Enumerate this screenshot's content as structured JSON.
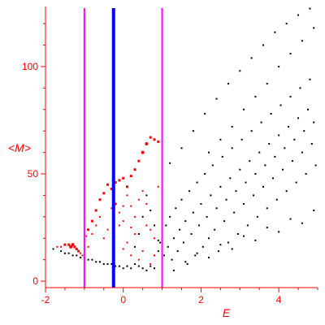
{
  "colors": {
    "axis": "#ff0000",
    "black_points": "#000000",
    "red_points": "#ff0000",
    "magenta_line": "#ff00ff",
    "blue_line": "#0000ff",
    "background": "#ffffff"
  },
  "chart_data": {
    "type": "scatter",
    "title": "",
    "xlabel": "E",
    "ylabel": "<M>",
    "xlim": [
      -2,
      5
    ],
    "ylim": [
      -3,
      128
    ],
    "x_ticks": [
      -2,
      0,
      2,
      4
    ],
    "y_ticks": [
      0,
      50,
      100
    ],
    "grid": false,
    "vertical_lines": [
      {
        "x": -1.0,
        "color": "#ff00ff",
        "width": "thin"
      },
      {
        "x": -0.25,
        "color": "#0000ff",
        "width": "thick"
      },
      {
        "x": 1.0,
        "color": "#ff00ff",
        "width": "thin"
      }
    ],
    "series": [
      {
        "color": "#000000",
        "marker": "small-dot",
        "points": [
          [
            -1.8,
            15
          ],
          [
            -1.6,
            14
          ],
          [
            -1.5,
            13
          ],
          [
            -1.4,
            13
          ],
          [
            -1.3,
            12
          ],
          [
            -1.2,
            12
          ],
          [
            -1.1,
            11
          ],
          [
            -1.0,
            11
          ],
          [
            -0.9,
            10
          ],
          [
            -0.8,
            10
          ],
          [
            -0.7,
            9
          ],
          [
            -0.6,
            9
          ],
          [
            -0.5,
            8
          ],
          [
            -0.4,
            8
          ],
          [
            -0.3,
            8
          ],
          [
            -0.2,
            7
          ],
          [
            -0.1,
            7
          ],
          [
            0.0,
            6
          ],
          [
            0.1,
            7
          ],
          [
            0.2,
            6
          ],
          [
            0.3,
            8
          ],
          [
            0.4,
            7
          ],
          [
            0.5,
            6
          ],
          [
            0.6,
            5
          ],
          [
            0.7,
            7
          ],
          [
            0.8,
            6
          ],
          [
            0.9,
            14
          ],
          [
            0.95,
            18
          ],
          [
            1.0,
            22
          ],
          [
            1.05,
            12
          ],
          [
            1.1,
            26
          ],
          [
            1.15,
            16
          ],
          [
            1.2,
            30
          ],
          [
            1.25,
            10
          ],
          [
            1.3,
            20
          ],
          [
            1.35,
            34
          ],
          [
            1.4,
            14
          ],
          [
            1.45,
            24
          ],
          [
            1.5,
            38
          ],
          [
            1.55,
            18
          ],
          [
            1.6,
            28
          ],
          [
            1.65,
            8
          ],
          [
            1.7,
            42
          ],
          [
            1.75,
            22
          ],
          [
            1.8,
            32
          ],
          [
            1.85,
            12
          ],
          [
            1.9,
            46
          ],
          [
            1.95,
            26
          ],
          [
            2.0,
            36
          ],
          [
            2.05,
            16
          ],
          [
            2.1,
            50
          ],
          [
            2.15,
            30
          ],
          [
            2.2,
            20
          ],
          [
            2.25,
            40
          ],
          [
            2.3,
            54
          ],
          [
            2.35,
            24
          ],
          [
            2.4,
            34
          ],
          [
            2.45,
            14
          ],
          [
            2.5,
            44
          ],
          [
            2.55,
            58
          ],
          [
            2.6,
            28
          ],
          [
            2.65,
            38
          ],
          [
            2.7,
            18
          ],
          [
            2.75,
            48
          ],
          [
            2.8,
            62
          ],
          [
            2.85,
            32
          ],
          [
            2.9,
            42
          ],
          [
            2.95,
            22
          ],
          [
            3.0,
            52
          ],
          [
            3.05,
            66
          ],
          [
            3.1,
            36
          ],
          [
            3.15,
            46
          ],
          [
            3.2,
            26
          ],
          [
            3.25,
            56
          ],
          [
            3.3,
            70
          ],
          [
            3.35,
            40
          ],
          [
            3.4,
            50
          ],
          [
            3.45,
            30
          ],
          [
            3.5,
            60
          ],
          [
            3.55,
            74
          ],
          [
            3.6,
            44
          ],
          [
            3.65,
            54
          ],
          [
            3.7,
            34
          ],
          [
            3.75,
            64
          ],
          [
            3.8,
            78
          ],
          [
            3.85,
            48
          ],
          [
            3.9,
            58
          ],
          [
            3.95,
            38
          ],
          [
            4.0,
            68
          ],
          [
            4.05,
            82
          ],
          [
            4.1,
            52
          ],
          [
            4.15,
            62
          ],
          [
            4.2,
            42
          ],
          [
            4.25,
            72
          ],
          [
            4.3,
            86
          ],
          [
            4.35,
            56
          ],
          [
            4.4,
            66
          ],
          [
            4.45,
            46
          ],
          [
            4.5,
            76
          ],
          [
            4.55,
            90
          ],
          [
            4.6,
            60
          ],
          [
            4.65,
            70
          ],
          [
            4.7,
            50
          ],
          [
            4.75,
            80
          ],
          [
            4.8,
            94
          ],
          [
            4.85,
            64
          ],
          [
            4.9,
            74
          ],
          [
            4.95,
            54
          ],
          [
            1.2,
            55
          ],
          [
            1.5,
            62
          ],
          [
            1.8,
            70
          ],
          [
            2.1,
            78
          ],
          [
            2.4,
            85
          ],
          [
            2.7,
            92
          ],
          [
            3.0,
            98
          ],
          [
            3.3,
            104
          ],
          [
            3.6,
            110
          ],
          [
            3.9,
            116
          ],
          [
            4.2,
            120
          ],
          [
            4.5,
            124
          ],
          [
            4.8,
            127
          ],
          [
            2.2,
            60
          ],
          [
            2.5,
            66
          ],
          [
            2.8,
            72
          ],
          [
            3.1,
            80
          ],
          [
            3.4,
            86
          ],
          [
            3.7,
            92
          ],
          [
            4.0,
            100
          ],
          [
            4.3,
            106
          ],
          [
            4.6,
            112
          ],
          [
            4.9,
            118
          ],
          [
            1.3,
            5
          ],
          [
            1.6,
            9
          ],
          [
            1.9,
            13
          ],
          [
            2.2,
            11
          ],
          [
            2.5,
            17
          ],
          [
            2.8,
            15
          ],
          [
            3.1,
            21
          ],
          [
            3.4,
            19
          ],
          [
            3.7,
            25
          ],
          [
            4.0,
            23
          ],
          [
            4.3,
            29
          ],
          [
            4.6,
            27
          ],
          [
            4.9,
            33
          ],
          [
            0.6,
            40
          ],
          [
            0.7,
            33
          ],
          [
            0.8,
            26
          ],
          [
            0.9,
            19
          ],
          [
            0.5,
            30
          ],
          [
            0.4,
            22
          ],
          [
            0.3,
            16
          ]
        ]
      },
      {
        "color": "#ff0000",
        "marker": "sized-dot",
        "points": [
          [
            -1.7,
            16,
            2
          ],
          [
            -1.6,
            16,
            2
          ],
          [
            -1.5,
            17,
            3
          ],
          [
            -1.4,
            17,
            3
          ],
          [
            -1.35,
            16,
            4
          ],
          [
            -1.3,
            17,
            4
          ],
          [
            -1.25,
            16,
            3
          ],
          [
            -1.2,
            15,
            3
          ],
          [
            -1.15,
            14,
            3
          ],
          [
            -1.1,
            13,
            2
          ],
          [
            -1.05,
            12,
            2
          ],
          [
            -1.0,
            10,
            2
          ],
          [
            -0.95,
            21,
            2
          ],
          [
            -0.9,
            24,
            3
          ],
          [
            -0.8,
            28,
            3
          ],
          [
            -0.7,
            33,
            3
          ],
          [
            -0.6,
            38,
            3
          ],
          [
            -0.5,
            41,
            3
          ],
          [
            -0.4,
            45,
            3
          ],
          [
            -0.3,
            43,
            3
          ],
          [
            -0.2,
            46,
            3
          ],
          [
            -0.1,
            47,
            3
          ],
          [
            0.0,
            48,
            3
          ],
          [
            0.1,
            44,
            3
          ],
          [
            0.2,
            49,
            3
          ],
          [
            0.3,
            52,
            3
          ],
          [
            0.4,
            56,
            3
          ],
          [
            0.5,
            60,
            4
          ],
          [
            0.6,
            64,
            4
          ],
          [
            0.7,
            67,
            3
          ],
          [
            0.8,
            66,
            3
          ],
          [
            0.9,
            65,
            3
          ],
          [
            -0.9,
            16,
            2
          ],
          [
            -0.8,
            22,
            2
          ],
          [
            -0.7,
            26,
            2
          ],
          [
            -0.6,
            30,
            2
          ],
          [
            -0.5,
            20,
            2
          ],
          [
            -0.4,
            24,
            2
          ],
          [
            -0.3,
            34,
            2
          ],
          [
            -0.2,
            36,
            3
          ],
          [
            -0.1,
            32,
            2
          ],
          [
            0.0,
            28,
            2
          ],
          [
            0.1,
            40,
            2
          ],
          [
            0.2,
            35,
            2
          ],
          [
            0.3,
            30,
            2
          ],
          [
            0.4,
            38,
            2
          ],
          [
            0.5,
            42,
            2
          ],
          [
            0.6,
            36,
            2
          ],
          [
            0.7,
            24,
            2
          ],
          [
            0.8,
            20,
            2
          ],
          [
            0.9,
            44,
            2
          ],
          [
            1.0,
            42,
            2
          ],
          [
            0.0,
            15,
            2
          ],
          [
            0.1,
            18,
            2
          ],
          [
            0.2,
            12,
            2
          ],
          [
            0.3,
            22,
            2
          ],
          [
            0.4,
            10,
            2
          ],
          [
            0.5,
            14,
            2
          ],
          [
            0.6,
            26,
            2
          ],
          [
            0.7,
            8,
            2
          ],
          [
            0.8,
            12,
            2
          ],
          [
            0.2,
            25,
            2
          ],
          [
            0.0,
            35,
            2
          ],
          [
            -0.1,
            26,
            2
          ]
        ]
      }
    ]
  }
}
